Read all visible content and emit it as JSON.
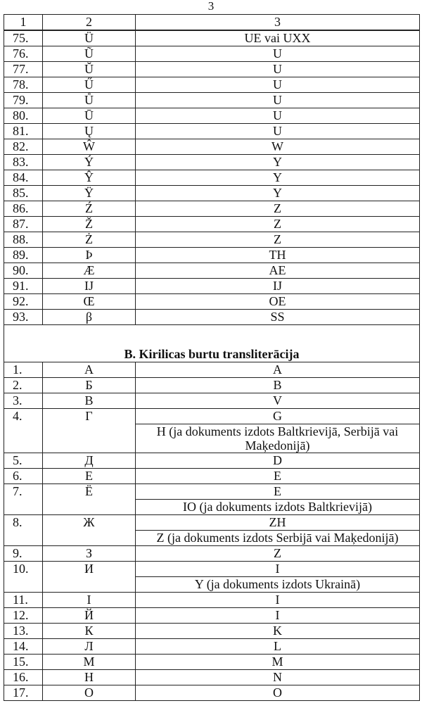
{
  "page_number": "3",
  "header": [
    "1",
    "2",
    "3"
  ],
  "latin_rows": [
    {
      "n": "75.",
      "letter": "Ü",
      "translit": [
        "UE vai UXX"
      ]
    },
    {
      "n": "76.",
      "letter": "Ũ",
      "translit": [
        "U"
      ]
    },
    {
      "n": "77.",
      "letter": "Ŭ",
      "translit": [
        "U"
      ]
    },
    {
      "n": "78.",
      "letter": "Ű",
      "translit": [
        "U"
      ]
    },
    {
      "n": "79.",
      "letter": "Ů",
      "translit": [
        "U"
      ]
    },
    {
      "n": "80.",
      "letter": "Ū",
      "translit": [
        "U"
      ]
    },
    {
      "n": "81.",
      "letter": "Ų",
      "translit": [
        "U"
      ]
    },
    {
      "n": "82.",
      "letter": "Ŵ",
      "translit": [
        "W"
      ]
    },
    {
      "n": "83.",
      "letter": "Ý",
      "translit": [
        "Y"
      ]
    },
    {
      "n": "84.",
      "letter": "Ŷ",
      "translit": [
        "Y"
      ]
    },
    {
      "n": "85.",
      "letter": "Ÿ",
      "translit": [
        "Y"
      ]
    },
    {
      "n": "86.",
      "letter": "Ź",
      "translit": [
        "Z"
      ]
    },
    {
      "n": "87.",
      "letter": "Ž",
      "translit": [
        "Z"
      ]
    },
    {
      "n": "88.",
      "letter": "Ż",
      "translit": [
        "Z"
      ]
    },
    {
      "n": "89.",
      "letter": "Þ",
      "translit": [
        "TH"
      ]
    },
    {
      "n": "90.",
      "letter": "Æ",
      "translit": [
        "AE"
      ]
    },
    {
      "n": "91.",
      "letter": "IJ",
      "translit": [
        "IJ"
      ]
    },
    {
      "n": "92.",
      "letter": "Œ",
      "translit": [
        "OE"
      ]
    },
    {
      "n": "93.",
      "letter": "β",
      "translit": [
        "SS"
      ]
    }
  ],
  "section_title": "B. Kirilicas burtu transliterācija",
  "cyrillic_rows": [
    {
      "n": "1.",
      "letter": "А",
      "translit": [
        "A"
      ]
    },
    {
      "n": "2.",
      "letter": "Б",
      "translit": [
        "B"
      ]
    },
    {
      "n": "3.",
      "letter": "В",
      "translit": [
        "V"
      ]
    },
    {
      "n": "4.",
      "letter": "Г",
      "translit": [
        "G",
        "H (ja dokuments izdots Baltkrievijā, Serbijā vai Maķedonijā)"
      ]
    },
    {
      "n": "5.",
      "letter": "Д",
      "translit": [
        "D"
      ]
    },
    {
      "n": "6.",
      "letter": "Е",
      "translit": [
        "E"
      ]
    },
    {
      "n": "7.",
      "letter": "Ё",
      "translit": [
        "E",
        "IO (ja dokuments izdots Baltkrievijā)"
      ]
    },
    {
      "n": "8.",
      "letter": "Ж",
      "translit": [
        "ZH",
        "Z (ja dokuments izdots Serbijā vai Maķedonijā)"
      ]
    },
    {
      "n": "9.",
      "letter": "З",
      "translit": [
        "Z"
      ]
    },
    {
      "n": "10.",
      "letter": "И",
      "translit": [
        "I",
        "Y (ja dokuments izdots Ukrainā)"
      ]
    },
    {
      "n": "11.",
      "letter": "І",
      "translit": [
        "I"
      ]
    },
    {
      "n": "12.",
      "letter": "Й",
      "translit": [
        "I"
      ]
    },
    {
      "n": "13.",
      "letter": "К",
      "translit": [
        "K"
      ]
    },
    {
      "n": "14.",
      "letter": "Л",
      "translit": [
        "L"
      ]
    },
    {
      "n": "15.",
      "letter": "М",
      "translit": [
        "M"
      ]
    },
    {
      "n": "16.",
      "letter": "Н",
      "translit": [
        "N"
      ]
    },
    {
      "n": "17.",
      "letter": "О",
      "translit": [
        "O"
      ]
    }
  ]
}
